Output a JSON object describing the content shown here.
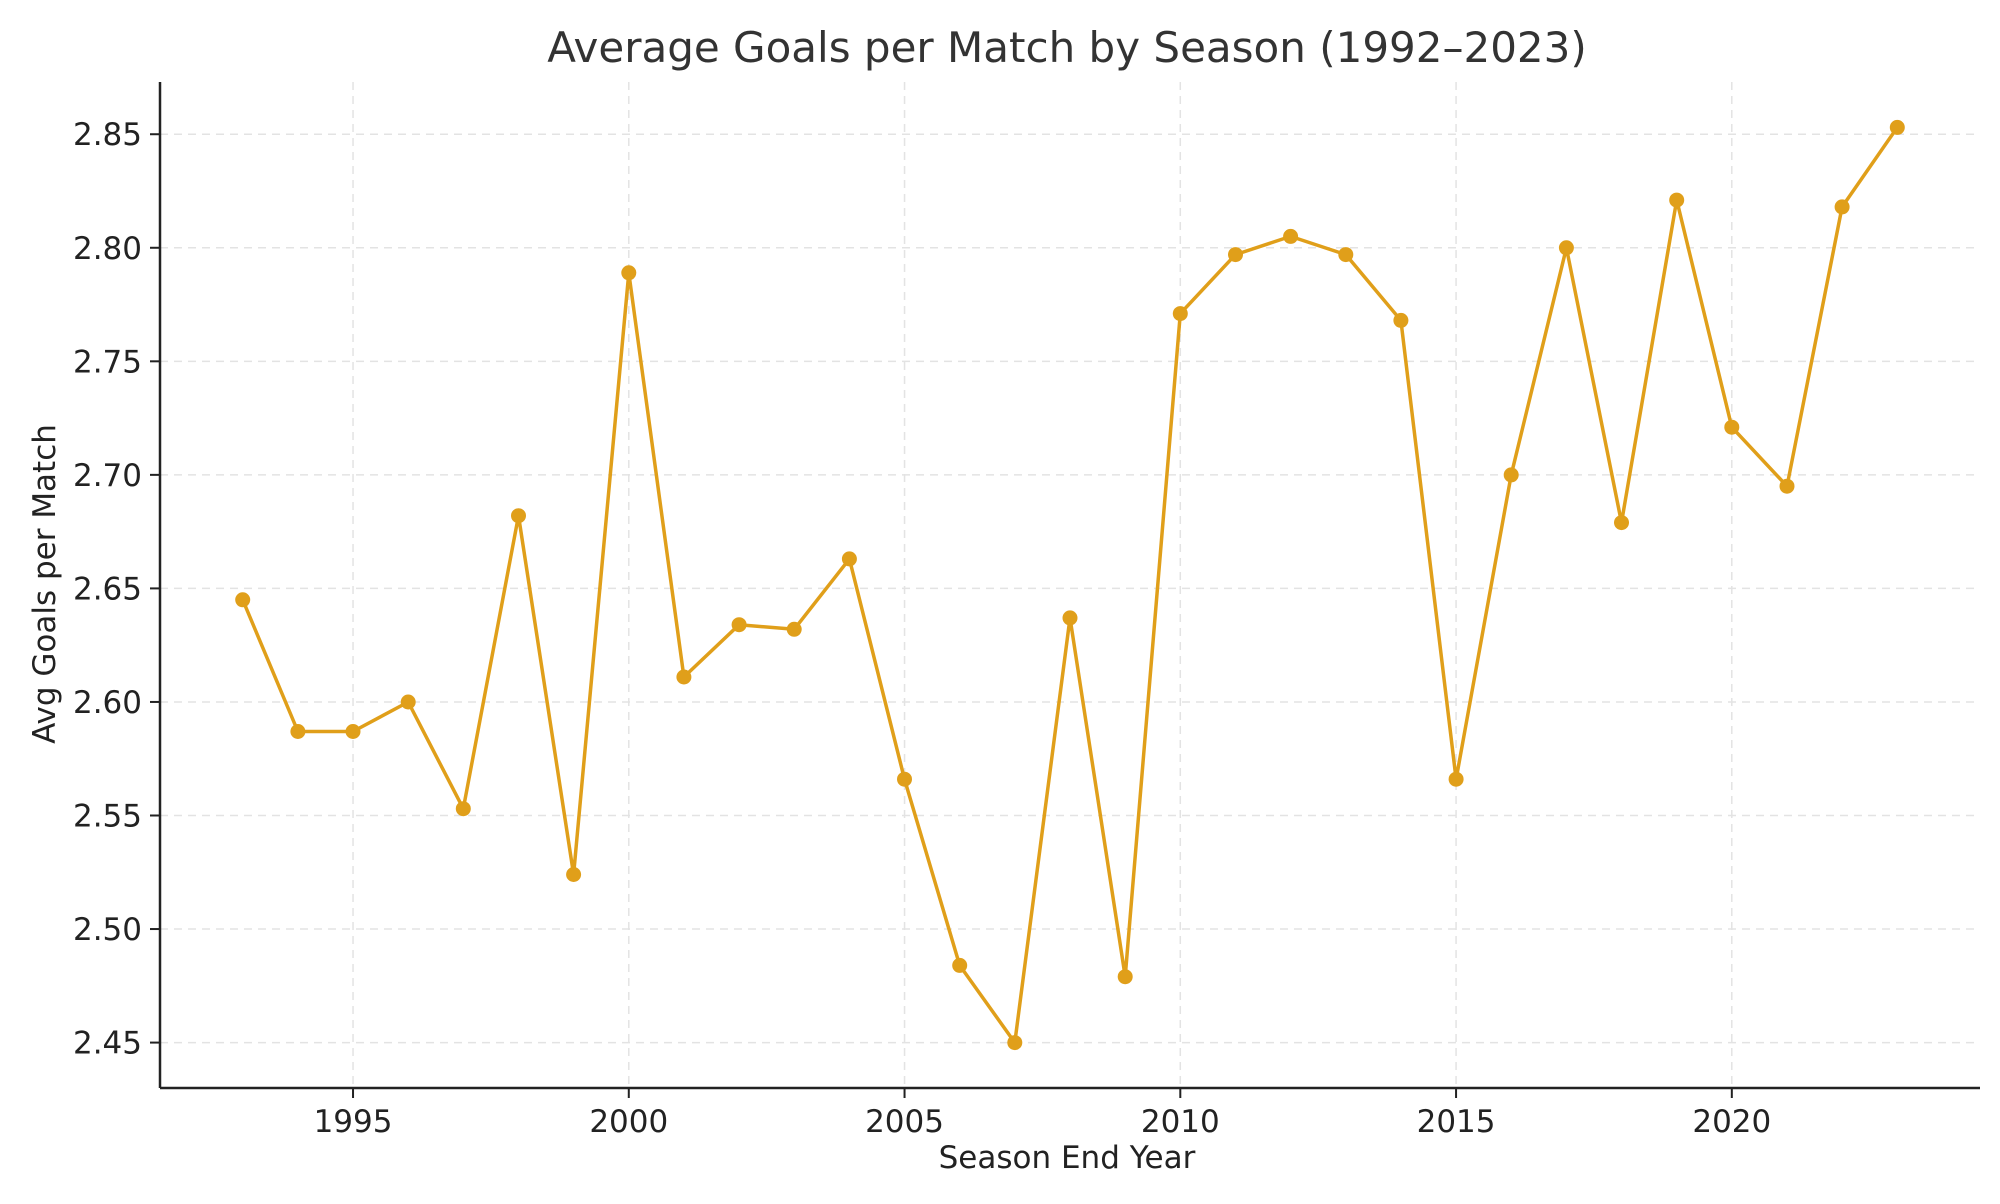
{
  "chart_data": {
    "type": "line",
    "title": "Average Goals per Match by Season (1992–2023)",
    "xlabel": "Season End Year",
    "ylabel": "Avg Goals per Match",
    "x": [
      1993,
      1994,
      1995,
      1996,
      1997,
      1998,
      1999,
      2000,
      2001,
      2002,
      2003,
      2004,
      2005,
      2006,
      2007,
      2008,
      2009,
      2010,
      2011,
      2012,
      2013,
      2014,
      2015,
      2016,
      2017,
      2018,
      2019,
      2020,
      2021,
      2022,
      2023
    ],
    "series": [
      {
        "values": [
          2.645,
          2.587,
          2.587,
          2.6,
          2.553,
          2.682,
          2.524,
          2.789,
          2.611,
          2.634,
          2.632,
          2.663,
          2.566,
          2.484,
          2.45,
          2.637,
          2.479,
          2.771,
          2.797,
          2.805,
          2.797,
          2.768,
          2.566,
          2.7,
          2.8,
          2.679,
          2.821,
          2.721,
          2.695,
          2.818,
          2.853
        ],
        "color": "#E09F1A"
      }
    ],
    "xlim": [
      1991.5,
      2024.5
    ],
    "ylim": [
      2.43,
      2.873
    ],
    "x_ticks": [
      "1995",
      "2000",
      "2005",
      "2010",
      "2015",
      "2020"
    ],
    "y_ticks": [
      "2.45",
      "2.50",
      "2.55",
      "2.60",
      "2.65",
      "2.70",
      "2.75",
      "2.80",
      "2.85"
    ],
    "grid": true,
    "legend": "none",
    "marker": "circle"
  }
}
